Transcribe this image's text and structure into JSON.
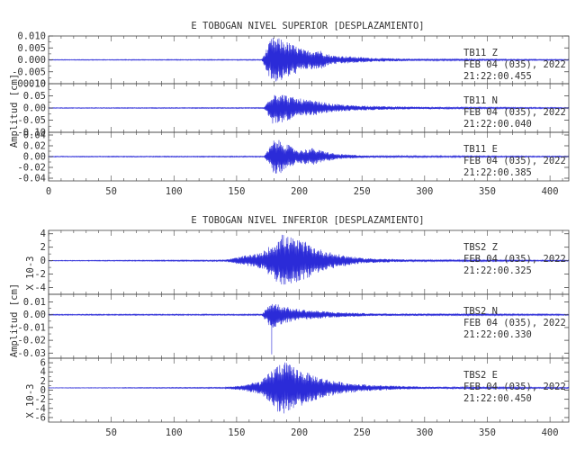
{
  "colors": {
    "trace": "#2b2bd8",
    "axis": "#444444",
    "text": "#333333"
  },
  "chart_data": [
    {
      "type": "line",
      "title": "E TOBOGAN NIVEL SUPERIOR [DESPLAZAMIENTO]",
      "ylabel": "Amplitud [cm]",
      "xlim": [
        0,
        415
      ],
      "x_ticks": [
        "0",
        "50",
        "100",
        "150",
        "200",
        "250",
        "300",
        "350",
        "400"
      ],
      "x_tick_values": [
        0,
        50,
        100,
        150,
        200,
        250,
        300,
        350,
        400
      ],
      "panels": [
        {
          "station": "TB11",
          "component": "Z",
          "date": "FEB 04 (035), 2022",
          "time": "21:22:00.455",
          "side_label": "",
          "ylim": [
            -0.01,
            0.01
          ],
          "y_ticks": [
            "0.010",
            "0.005",
            "0.000",
            "-0.005",
            "-0.010"
          ],
          "y_tick_values": [
            0.01,
            0.005,
            0.0,
            -0.005,
            -0.01
          ],
          "envelope": [
            [
              0,
              0.00015
            ],
            [
              170,
              0.0002
            ],
            [
              178,
              0.0095
            ],
            [
              185,
              0.009
            ],
            [
              195,
              0.0065
            ],
            [
              205,
              0.004
            ],
            [
              215,
              0.0045
            ],
            [
              225,
              0.002
            ],
            [
              240,
              0.0015
            ],
            [
              260,
              0.0008
            ],
            [
              300,
              0.0004
            ],
            [
              415,
              0.0002
            ]
          ],
          "baseline": 0.0
        },
        {
          "station": "TB11",
          "component": "N",
          "date": "FEB 04 (035), 2022",
          "time": "21:22:00.040",
          "side_label": "",
          "ylim": [
            -0.1,
            0.1
          ],
          "y_ticks": [
            "0.10",
            "0.05",
            "0.00",
            "-0.05",
            "-0.10"
          ],
          "y_tick_values": [
            0.1,
            0.05,
            0.0,
            -0.05,
            -0.1
          ],
          "envelope": [
            [
              0,
              0.0015
            ],
            [
              172,
              0.002
            ],
            [
              179,
              0.07
            ],
            [
              186,
              0.06
            ],
            [
              195,
              0.045
            ],
            [
              205,
              0.035
            ],
            [
              215,
              0.028
            ],
            [
              225,
              0.018
            ],
            [
              240,
              0.012
            ],
            [
              270,
              0.007
            ],
            [
              310,
              0.004
            ],
            [
              415,
              0.002
            ]
          ],
          "baseline": 0.0
        },
        {
          "station": "TB11",
          "component": "E",
          "date": "FEB 04 (035), 2022",
          "time": "21:22:00.385",
          "side_label": "",
          "ylim": [
            -0.045,
            0.045
          ],
          "y_ticks": [
            "0.04",
            "0.02",
            "0.00",
            "-0.02",
            "-0.04"
          ],
          "y_tick_values": [
            0.04,
            0.02,
            0.0,
            -0.02,
            -0.04
          ],
          "envelope": [
            [
              0,
              0.0008
            ],
            [
              172,
              0.001
            ],
            [
              180,
              0.032
            ],
            [
              186,
              0.03
            ],
            [
              194,
              0.018
            ],
            [
              200,
              0.012
            ],
            [
              210,
              0.016
            ],
            [
              218,
              0.011
            ],
            [
              230,
              0.005
            ],
            [
              238,
              0.004
            ],
            [
              255,
              0.002
            ],
            [
              300,
              0.0015
            ],
            [
              415,
              0.001
            ]
          ],
          "baseline": 0.0
        }
      ]
    },
    {
      "type": "line",
      "title": "E TOBOGAN NIVEL INFERIOR [DESPLAZAMIENTO]",
      "ylabel": "Amplitud [cm]",
      "xlim": [
        0,
        415
      ],
      "x_ticks": [
        "50",
        "100",
        "150",
        "200",
        "250",
        "300",
        "350",
        "400"
      ],
      "x_tick_values": [
        50,
        100,
        150,
        200,
        250,
        300,
        350,
        400
      ],
      "panels": [
        {
          "station": "TBS2",
          "component": "Z",
          "date": "FEB 04 (035), 2022",
          "time": "21:22:00.325",
          "side_label": "X 10-3",
          "ylim": [
            -5,
            4.5
          ],
          "y_ticks": [
            "4",
            "2",
            "0",
            "-2",
            "-4"
          ],
          "y_tick_values": [
            4,
            2,
            0,
            -2,
            -4
          ],
          "envelope": [
            [
              0,
              0.05
            ],
            [
              140,
              0.1
            ],
            [
              155,
              0.7
            ],
            [
              170,
              1.2
            ],
            [
              180,
              2.8
            ],
            [
              186,
              4.0
            ],
            [
              195,
              3.4
            ],
            [
              205,
              2.8
            ],
            [
              215,
              1.8
            ],
            [
              230,
              1.0
            ],
            [
              250,
              0.4
            ],
            [
              290,
              0.15
            ],
            [
              415,
              0.08
            ]
          ],
          "baseline": 0.0
        },
        {
          "station": "TBS2",
          "component": "N",
          "date": "FEB 04 (035), 2022",
          "time": "21:22:00.330",
          "side_label": "",
          "ylim": [
            -0.034,
            0.016
          ],
          "y_ticks": [
            "0.01",
            "0.00",
            "-0.01",
            "-0.02",
            "-0.03"
          ],
          "y_tick_values": [
            0.01,
            0.0,
            -0.01,
            -0.02,
            -0.03
          ],
          "envelope": [
            [
              0,
              0.0004
            ],
            [
              170,
              0.0005
            ],
            [
              178,
              0.011
            ],
            [
              184,
              0.008
            ],
            [
              195,
              0.005
            ],
            [
              210,
              0.0035
            ],
            [
              230,
              0.002
            ],
            [
              260,
              0.001
            ],
            [
              415,
              0.0005
            ]
          ],
          "spike": {
            "x": 178,
            "y": -0.031
          },
          "baseline": 0.0
        },
        {
          "station": "TBS2",
          "component": "E",
          "date": "FEB 04 (035), 2022",
          "time": "21:22:00.450",
          "side_label": "X 10-3",
          "ylim": [
            -7,
            7
          ],
          "y_ticks": [
            "6",
            "4",
            "2",
            "0",
            "-2",
            "-4",
            "-6"
          ],
          "y_tick_values": [
            6,
            4,
            2,
            0,
            -2,
            -4,
            -6
          ],
          "envelope": [
            [
              0,
              0.05
            ],
            [
              140,
              0.12
            ],
            [
              155,
              0.6
            ],
            [
              170,
              1.6
            ],
            [
              180,
              4.5
            ],
            [
              186,
              6.0
            ],
            [
              195,
              4.8
            ],
            [
              205,
              3.5
            ],
            [
              218,
              2.2
            ],
            [
              235,
              1.2
            ],
            [
              260,
              0.6
            ],
            [
              300,
              0.25
            ],
            [
              415,
              0.12
            ]
          ],
          "baseline": 0.5
        }
      ]
    }
  ]
}
